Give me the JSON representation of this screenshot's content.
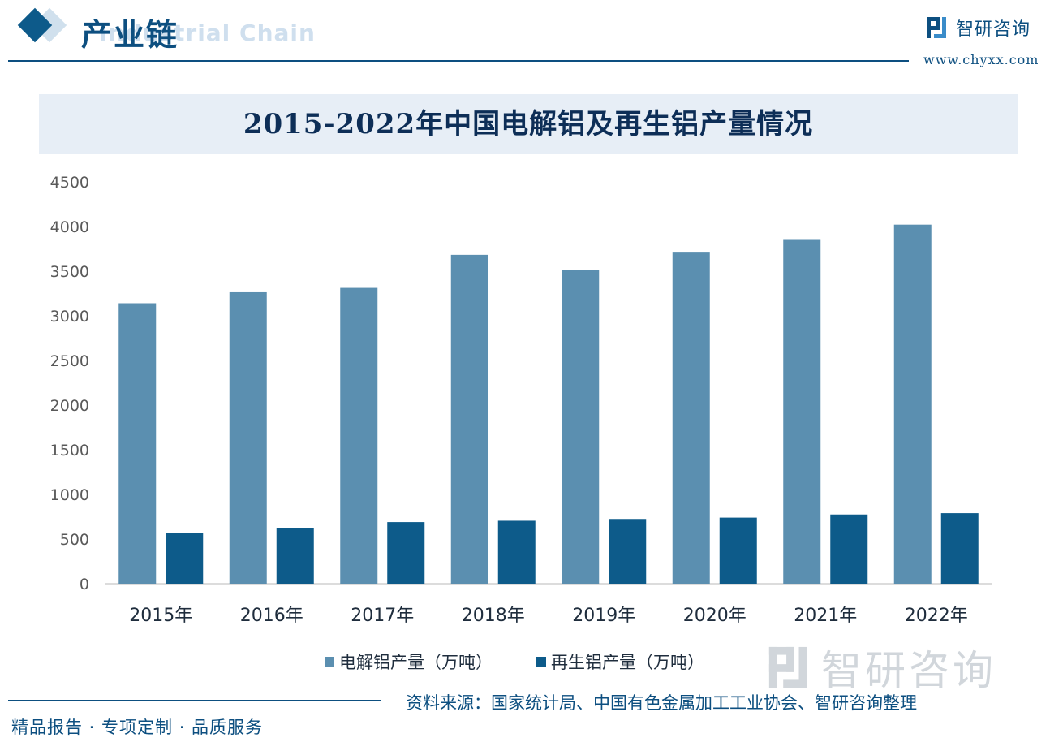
{
  "header": {
    "section_title": "产业链",
    "section_subtitle": "Industrial Chain"
  },
  "brand": {
    "name": "智研咨询",
    "url": "www.chyxx.com"
  },
  "chart_data": {
    "type": "bar",
    "title": "2015-2022年中国电解铝及再生铝产量情况",
    "categories": [
      "2015年",
      "2016年",
      "2017年",
      "2018年",
      "2019年",
      "2020年",
      "2021年",
      "2022年"
    ],
    "series": [
      {
        "name": "电解铝产量（万吨）",
        "color": "#5b8fb0",
        "values": [
          3141,
          3264,
          3313,
          3683,
          3512,
          3708,
          3850,
          4021
        ]
      },
      {
        "name": "再生铝产量（万吨）",
        "color": "#0d5b8a",
        "values": [
          570,
          625,
          690,
          705,
          725,
          740,
          775,
          790
        ]
      }
    ],
    "y_ticks": [
      "0",
      "500",
      "1000",
      "1500",
      "2000",
      "2500",
      "3000",
      "3500",
      "4000",
      "4500"
    ],
    "ylim": [
      0,
      4500
    ],
    "grid": false,
    "legend": "bottom"
  },
  "watermark": {
    "text": "智研咨询"
  },
  "footer": {
    "source": "资料来源：国家统计局、中国有色金属加工工业协会、智研咨询整理",
    "slogan": "精品报告 · 专项定制 · 品质服务"
  }
}
